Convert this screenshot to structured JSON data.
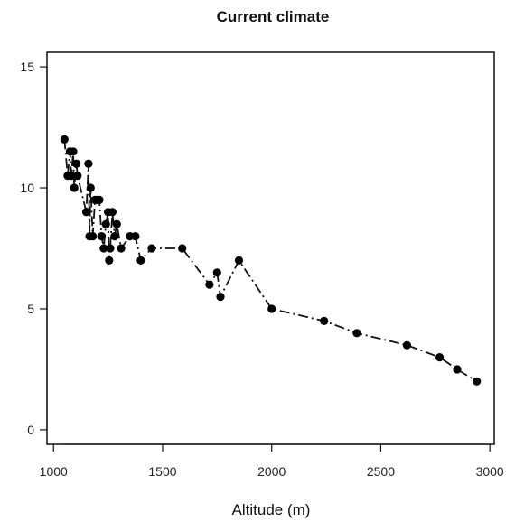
{
  "chart_data": {
    "type": "line",
    "title": "Current climate",
    "xlabel": "Altitude (m)",
    "ylabel": "",
    "xlim": [
      970,
      3020
    ],
    "ylim": [
      -0.6,
      15.6
    ],
    "xticks": [
      1000,
      1500,
      2000,
      2500,
      3000
    ],
    "yticks": [
      0,
      5,
      10,
      15
    ],
    "grid": false,
    "series": [
      {
        "name": "",
        "color": "#000000",
        "line_style": "dash-dot",
        "marker": "filled-circle",
        "x": [
          1050,
          1065,
          1075,
          1082,
          1090,
          1095,
          1105,
          1110,
          1150,
          1160,
          1165,
          1170,
          1180,
          1190,
          1200,
          1210,
          1220,
          1230,
          1240,
          1250,
          1255,
          1260,
          1270,
          1280,
          1290,
          1310,
          1350,
          1375,
          1400,
          1450,
          1590,
          1715,
          1750,
          1765,
          1850,
          2000,
          2240,
          2390,
          2620,
          2770,
          2850,
          2940
        ],
        "y": [
          12,
          10.5,
          11.5,
          10.5,
          11.5,
          10,
          11,
          10.5,
          9,
          11,
          8,
          10,
          8,
          9.5,
          9.5,
          9.5,
          8,
          7.5,
          8.5,
          9,
          7,
          7.5,
          9,
          8,
          8.5,
          7.5,
          8,
          8,
          7,
          7.5,
          7.5,
          6,
          6.5,
          5.5,
          7,
          5,
          4.5,
          4,
          3.5,
          3,
          2.5,
          2
        ]
      }
    ]
  }
}
